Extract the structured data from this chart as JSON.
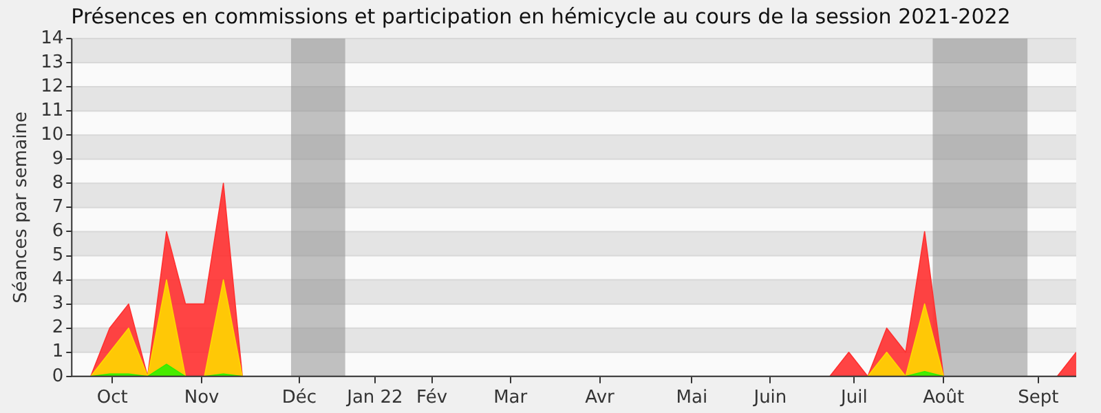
{
  "chart_data": {
    "type": "area",
    "title": "Présences en commissions et participation en hémicycle au cours de la session 2021-2022",
    "ylabel": "Séances par semaine",
    "x": [
      "2021-10-04",
      "2021-10-11",
      "2021-10-18",
      "2021-10-25",
      "2021-11-01",
      "2021-11-08",
      "2021-11-15",
      "2021-11-22",
      "2021-11-29",
      "2021-12-06",
      "2021-12-13",
      "2021-12-20",
      "2021-12-27",
      "2022-01-03",
      "2022-01-10",
      "2022-01-17",
      "2022-01-24",
      "2022-01-31",
      "2022-02-07",
      "2022-02-14",
      "2022-02-21",
      "2022-02-28",
      "2022-03-07",
      "2022-03-14",
      "2022-03-21",
      "2022-03-28",
      "2022-04-04",
      "2022-04-11",
      "2022-04-18",
      "2022-04-25",
      "2022-05-02",
      "2022-05-09",
      "2022-05-16",
      "2022-05-23",
      "2022-05-30",
      "2022-06-06",
      "2022-06-13",
      "2022-06-20",
      "2022-06-27",
      "2022-07-04",
      "2022-07-11",
      "2022-07-18",
      "2022-07-25",
      "2022-08-01",
      "2022-08-08",
      "2022-08-15",
      "2022-08-22",
      "2022-08-29",
      "2022-09-05",
      "2022-09-12",
      "2022-09-19",
      "2022-09-26",
      "2022-10-03"
    ],
    "series": [
      {
        "color": "#ff3030",
        "values": [
          0,
          2,
          3,
          0,
          6,
          3,
          3,
          8,
          0,
          0,
          0,
          0,
          0,
          0,
          0,
          0,
          0,
          0,
          0,
          0,
          0,
          0,
          0,
          0,
          0,
          0,
          0,
          0,
          0,
          0,
          0,
          0,
          0,
          0,
          0,
          0,
          0,
          0,
          0,
          0,
          1,
          0,
          2,
          1,
          6,
          0,
          0,
          0,
          0,
          0,
          0,
          0,
          1
        ]
      },
      {
        "color": "#ffd700",
        "values": [
          0,
          1,
          2,
          0,
          4,
          0,
          0,
          4,
          0,
          0,
          0,
          0,
          0,
          0,
          0,
          0,
          0,
          0,
          0,
          0,
          0,
          0,
          0,
          0,
          0,
          0,
          0,
          0,
          0,
          0,
          0,
          0,
          0,
          0,
          0,
          0,
          0,
          0,
          0,
          0,
          0,
          0,
          1,
          0,
          3,
          0,
          0,
          0,
          0,
          0,
          0,
          0,
          0
        ]
      },
      {
        "color": "#33ee00",
        "values": [
          0,
          0.1,
          0.1,
          0,
          0.5,
          0,
          0,
          0.1,
          0,
          0,
          0,
          0,
          0,
          0,
          0,
          0,
          0,
          0,
          0,
          0,
          0,
          0,
          0,
          0,
          0,
          0,
          0,
          0,
          0,
          0,
          0,
          0,
          0,
          0,
          0,
          0,
          0,
          0,
          0,
          0,
          0,
          0,
          0,
          0,
          0.2,
          0,
          0,
          0,
          0,
          0,
          0,
          0,
          0
        ]
      }
    ],
    "xlim": [
      "2021-09-27",
      "2022-10-03"
    ],
    "xticks": [
      {
        "value": "2021-10-12",
        "label": "Oct"
      },
      {
        "value": "2021-11-14",
        "label": "Nov"
      },
      {
        "value": "2021-12-20",
        "label": "Déc"
      },
      {
        "value": "2022-01-17",
        "label": "Jan 22"
      },
      {
        "value": "2022-02-07",
        "label": "Fév"
      },
      {
        "value": "2022-03-08",
        "label": "Mar"
      },
      {
        "value": "2022-04-10",
        "label": "Avr"
      },
      {
        "value": "2022-05-14",
        "label": "Mai"
      },
      {
        "value": "2022-06-12",
        "label": "Juin"
      },
      {
        "value": "2022-07-13",
        "label": "Juil"
      },
      {
        "value": "2022-08-15",
        "label": "Août"
      },
      {
        "value": "2022-09-19",
        "label": "Sept"
      }
    ],
    "ylim": [
      0,
      14
    ],
    "yticks": [
      0,
      1,
      2,
      3,
      4,
      5,
      6,
      7,
      8,
      9,
      10,
      11,
      12,
      13,
      14
    ],
    "bands": [
      {
        "axis": "x",
        "from": "2021-12-17",
        "to": "2022-01-06",
        "color": "#909090"
      },
      {
        "axis": "x",
        "from": "2022-08-11",
        "to": "2022-09-15",
        "color": "#909090"
      }
    ],
    "grid": "y",
    "legend": false
  }
}
